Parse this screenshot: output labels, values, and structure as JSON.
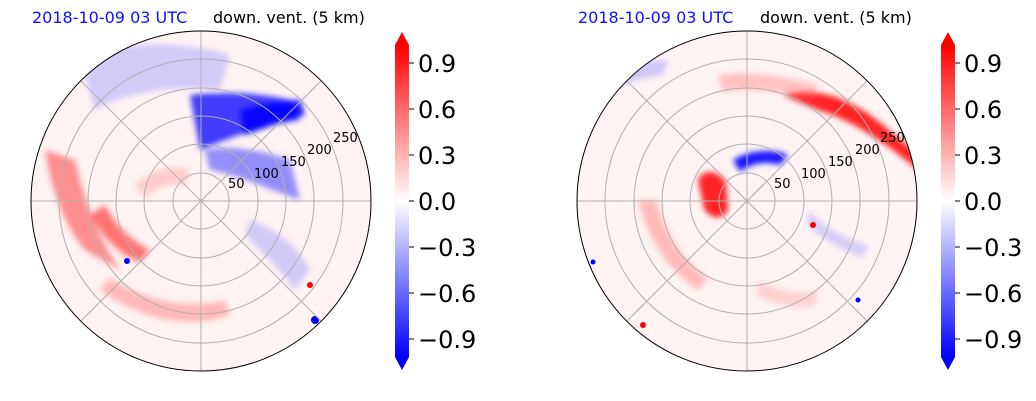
{
  "panels": [
    {
      "date_label": "2018-10-09 03 UTC",
      "field_label": "down. vent. (5 km)"
    },
    {
      "date_label": "2018-10-09 03 UTC",
      "field_label": "down. vent. (5 km)"
    }
  ],
  "chart_data": [
    {
      "type": "heatmap",
      "projection": "polar",
      "title": "2018-10-09 03 UTC   down. vent. (5 km)",
      "radial_ticks": [
        50,
        100,
        150,
        200,
        250
      ],
      "colorbar": {
        "ticks": [
          "0.9",
          "0.6",
          "0.3",
          "0.0",
          "−0.3",
          "−0.6",
          "−0.9"
        ],
        "tick_values": [
          0.9,
          0.6,
          0.3,
          0.0,
          -0.3,
          -0.6,
          -0.9
        ],
        "range": [
          -1.0,
          1.0
        ],
        "extend": "both",
        "cmap": "bwr",
        "colors": {
          "min": "#0000ff",
          "mid": "#ffffff",
          "max": "#ff0000"
        }
      },
      "grid": true
    },
    {
      "type": "heatmap",
      "projection": "polar",
      "title": "2018-10-09 03 UTC   down. vent. (5 km)",
      "radial_ticks": [
        50,
        100,
        150,
        200,
        250
      ],
      "colorbar": {
        "ticks": [
          "0.9",
          "0.6",
          "0.3",
          "0.0",
          "−0.3",
          "−0.6",
          "−0.9"
        ],
        "tick_values": [
          0.9,
          0.6,
          0.3,
          0.0,
          -0.3,
          -0.6,
          -0.9
        ],
        "range": [
          -1.0,
          1.0
        ],
        "extend": "both",
        "cmap": "bwr",
        "colors": {
          "min": "#0000ff",
          "mid": "#ffffff",
          "max": "#ff0000"
        }
      },
      "grid": true
    }
  ]
}
